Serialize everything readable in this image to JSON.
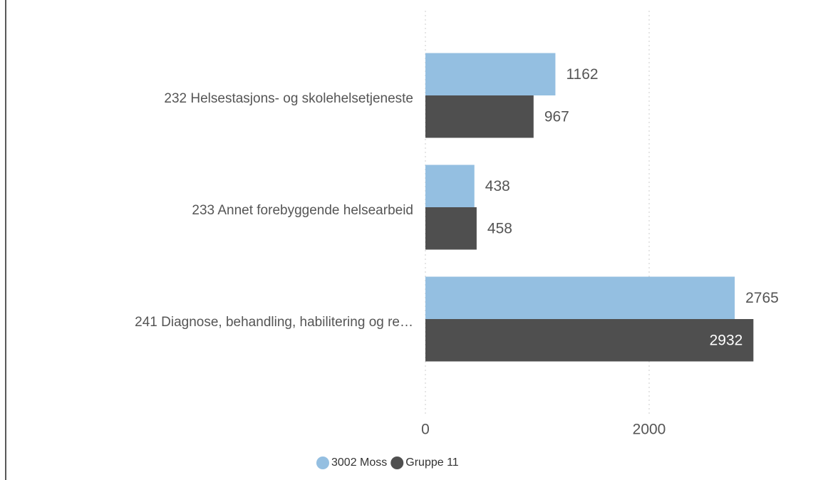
{
  "chart_data": {
    "type": "bar",
    "orientation": "horizontal",
    "categories": [
      "232 Helsestasjons- og skolehelsetjeneste",
      "233 Annet forebyggende helsearbeid",
      "241 Diagnose, behandling, habilitering og re…"
    ],
    "series": [
      {
        "name": "3002 Moss",
        "color": "#94bfe1",
        "values": [
          1162,
          438,
          2765
        ]
      },
      {
        "name": "Gruppe 11",
        "color": "#4f4f4f",
        "values": [
          967,
          458,
          2932
        ]
      }
    ],
    "xlim": [
      0,
      3554
    ],
    "xticks": [
      0,
      2000
    ],
    "grid": true,
    "legend": "bottom"
  }
}
